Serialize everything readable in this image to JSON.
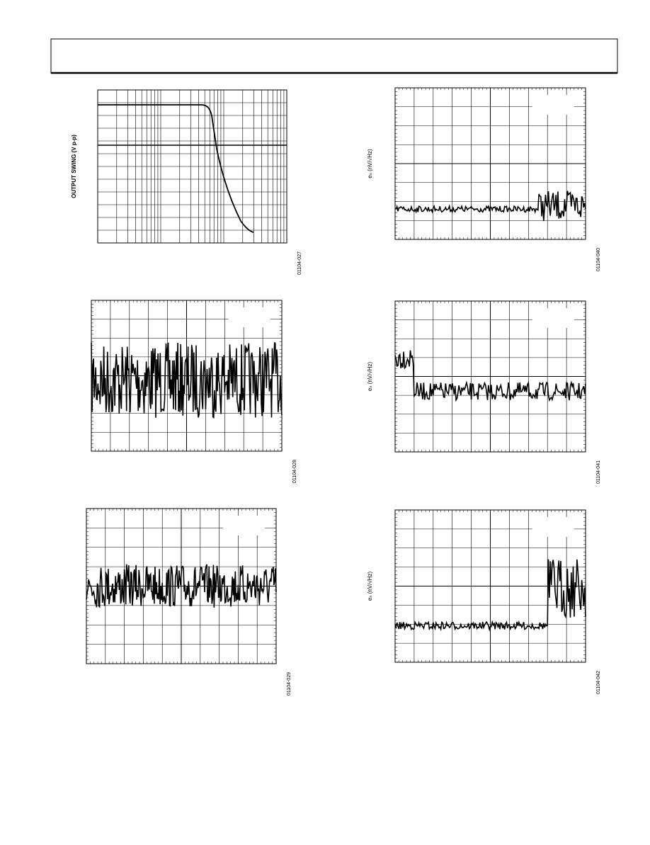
{
  "figures": [
    {
      "y_label": "OUTPUT SWING (V p-p)",
      "code": "01104-027"
    },
    {
      "code": "01104-028"
    },
    {
      "code": "01104-029"
    },
    {
      "y_label": "eₙ (nV/√Hz)",
      "code": "01104-040"
    },
    {
      "y_label": "eₙ (nV/√Hz)",
      "code": "01104-041"
    },
    {
      "y_label": "eₙ (nV/√Hz)",
      "code": "01104-042"
    }
  ]
}
